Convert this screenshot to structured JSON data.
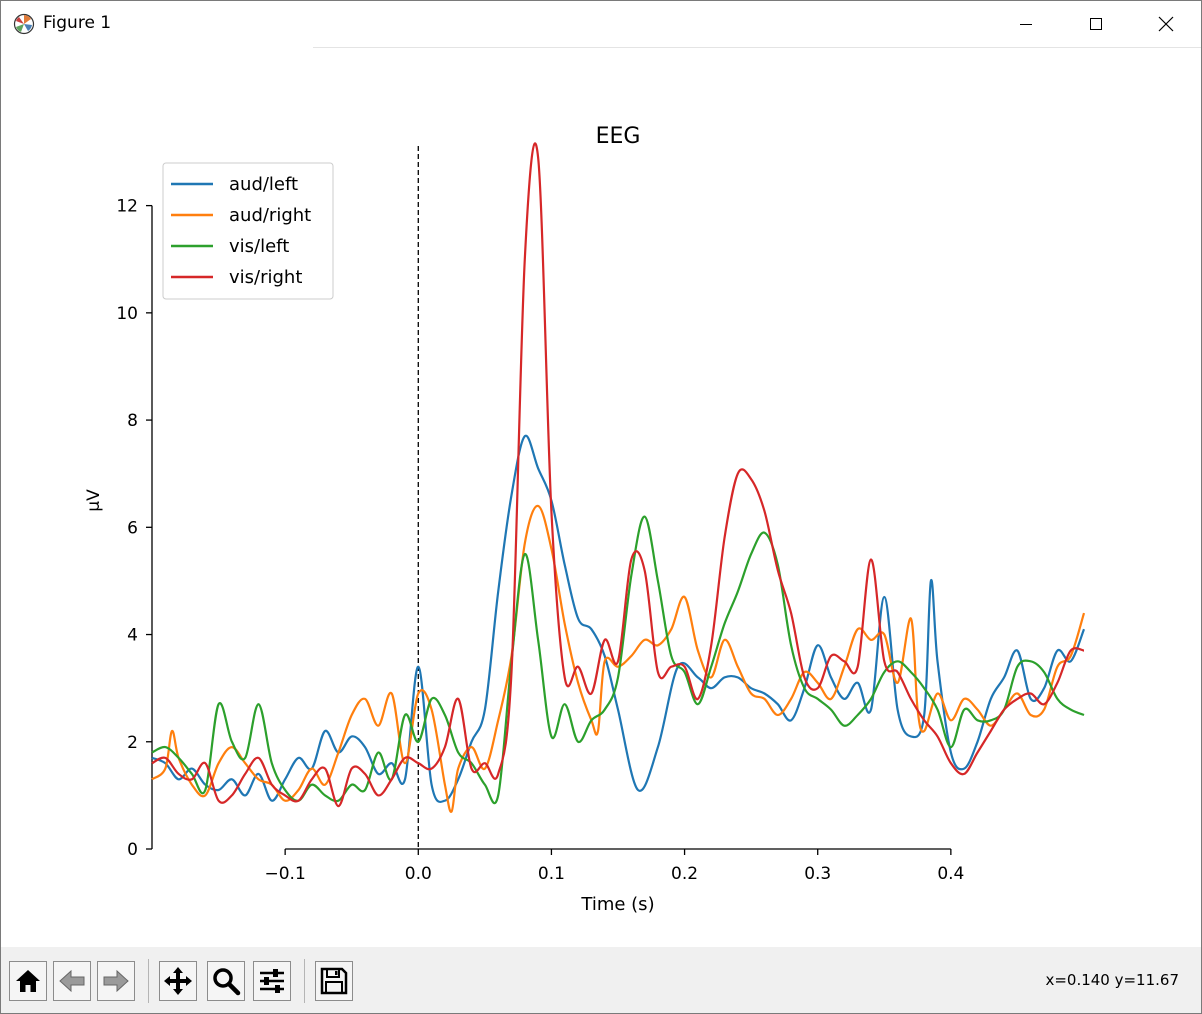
{
  "window": {
    "title": "Figure 1",
    "icon": "matplotlib-icon",
    "controls": [
      "minimize-icon",
      "maximize-icon",
      "close-icon"
    ]
  },
  "toolbar": {
    "buttons": [
      "home-icon",
      "back-arrow-icon",
      "forward-arrow-icon",
      "pan-icon",
      "zoom-icon",
      "configure-subplots-icon",
      "save-icon"
    ],
    "coords": "x=0.140 y=11.67"
  },
  "chart_data": {
    "type": "line",
    "title": "EEG",
    "xlabel": "Time (s)",
    "ylabel": "µV",
    "xlim": [
      -0.2,
      0.5
    ],
    "ylim": [
      0,
      13
    ],
    "xticks": [
      -0.1,
      0.0,
      0.1,
      0.2,
      0.3,
      0.4
    ],
    "xtick_labels": [
      "−0.1",
      "0.0",
      "0.1",
      "0.2",
      "0.3",
      "0.4"
    ],
    "yticks": [
      0,
      2,
      4,
      6,
      8,
      10,
      12
    ],
    "ytick_labels": [
      "0",
      "2",
      "4",
      "6",
      "8",
      "10",
      "12"
    ],
    "vline_x": 0.0,
    "legend_position": "upper-left",
    "series": [
      {
        "name": "aud/left",
        "color": "#1f77b4",
        "points": [
          [
            -0.2,
            1.7
          ],
          [
            -0.19,
            1.6
          ],
          [
            -0.18,
            1.3
          ],
          [
            -0.17,
            1.5
          ],
          [
            -0.16,
            1.2
          ],
          [
            -0.15,
            1.1
          ],
          [
            -0.14,
            1.3
          ],
          [
            -0.13,
            1.0
          ],
          [
            -0.12,
            1.4
          ],
          [
            -0.11,
            0.9
          ],
          [
            -0.1,
            1.3
          ],
          [
            -0.09,
            1.7
          ],
          [
            -0.08,
            1.5
          ],
          [
            -0.07,
            2.2
          ],
          [
            -0.06,
            1.8
          ],
          [
            -0.05,
            2.1
          ],
          [
            -0.04,
            1.9
          ],
          [
            -0.03,
            1.4
          ],
          [
            -0.02,
            1.6
          ],
          [
            -0.01,
            1.3
          ],
          [
            0.0,
            3.4
          ],
          [
            0.01,
            1.2
          ],
          [
            0.02,
            0.9
          ],
          [
            0.03,
            1.3
          ],
          [
            0.04,
            2.0
          ],
          [
            0.05,
            2.6
          ],
          [
            0.06,
            4.8
          ],
          [
            0.07,
            6.6
          ],
          [
            0.08,
            7.7
          ],
          [
            0.09,
            7.1
          ],
          [
            0.1,
            6.5
          ],
          [
            0.11,
            5.3
          ],
          [
            0.12,
            4.3
          ],
          [
            0.13,
            4.1
          ],
          [
            0.14,
            3.6
          ],
          [
            0.15,
            2.6
          ],
          [
            0.165,
            1.1
          ],
          [
            0.18,
            1.9
          ],
          [
            0.195,
            3.4
          ],
          [
            0.21,
            3.2
          ],
          [
            0.22,
            3.0
          ],
          [
            0.23,
            3.2
          ],
          [
            0.24,
            3.2
          ],
          [
            0.25,
            3.0
          ],
          [
            0.26,
            2.9
          ],
          [
            0.27,
            2.7
          ],
          [
            0.28,
            2.4
          ],
          [
            0.29,
            3.0
          ],
          [
            0.3,
            3.8
          ],
          [
            0.31,
            3.2
          ],
          [
            0.32,
            2.8
          ],
          [
            0.33,
            3.1
          ],
          [
            0.34,
            2.6
          ],
          [
            0.35,
            4.7
          ],
          [
            0.36,
            2.6
          ],
          [
            0.37,
            2.1
          ],
          [
            0.38,
            2.5
          ],
          [
            0.385,
            5.0
          ],
          [
            0.39,
            3.5
          ],
          [
            0.4,
            1.8
          ],
          [
            0.41,
            1.5
          ],
          [
            0.42,
            2.0
          ],
          [
            0.43,
            2.8
          ],
          [
            0.44,
            3.2
          ],
          [
            0.45,
            3.7
          ],
          [
            0.46,
            2.8
          ],
          [
            0.47,
            3.0
          ],
          [
            0.48,
            3.7
          ],
          [
            0.49,
            3.5
          ],
          [
            0.5,
            4.1
          ]
        ]
      },
      {
        "name": "aud/right",
        "color": "#ff7f0e",
        "points": [
          [
            -0.2,
            1.3
          ],
          [
            -0.19,
            1.5
          ],
          [
            -0.185,
            2.2
          ],
          [
            -0.18,
            1.7
          ],
          [
            -0.17,
            1.2
          ],
          [
            -0.16,
            1.0
          ],
          [
            -0.15,
            1.6
          ],
          [
            -0.14,
            1.9
          ],
          [
            -0.13,
            1.6
          ],
          [
            -0.12,
            1.3
          ],
          [
            -0.11,
            1.2
          ],
          [
            -0.1,
            0.9
          ],
          [
            -0.09,
            1.1
          ],
          [
            -0.08,
            1.5
          ],
          [
            -0.07,
            1.2
          ],
          [
            -0.06,
            1.8
          ],
          [
            -0.05,
            2.5
          ],
          [
            -0.04,
            2.8
          ],
          [
            -0.03,
            2.3
          ],
          [
            -0.02,
            2.9
          ],
          [
            -0.01,
            1.6
          ],
          [
            0.0,
            2.9
          ],
          [
            0.01,
            2.6
          ],
          [
            0.02,
            1.2
          ],
          [
            0.025,
            0.7
          ],
          [
            0.03,
            1.5
          ],
          [
            0.04,
            1.9
          ],
          [
            0.05,
            1.5
          ],
          [
            0.06,
            2.4
          ],
          [
            0.07,
            3.6
          ],
          [
            0.08,
            5.7
          ],
          [
            0.09,
            6.4
          ],
          [
            0.1,
            5.6
          ],
          [
            0.11,
            4.2
          ],
          [
            0.12,
            3.1
          ],
          [
            0.13,
            2.4
          ],
          [
            0.135,
            2.2
          ],
          [
            0.14,
            3.5
          ],
          [
            0.15,
            3.4
          ],
          [
            0.16,
            3.6
          ],
          [
            0.17,
            3.9
          ],
          [
            0.18,
            3.8
          ],
          [
            0.19,
            4.1
          ],
          [
            0.2,
            4.7
          ],
          [
            0.21,
            3.7
          ],
          [
            0.22,
            3.2
          ],
          [
            0.23,
            3.9
          ],
          [
            0.24,
            3.4
          ],
          [
            0.25,
            2.9
          ],
          [
            0.26,
            2.8
          ],
          [
            0.27,
            2.5
          ],
          [
            0.28,
            2.8
          ],
          [
            0.29,
            3.3
          ],
          [
            0.3,
            3.1
          ],
          [
            0.31,
            2.8
          ],
          [
            0.32,
            3.4
          ],
          [
            0.33,
            4.1
          ],
          [
            0.34,
            3.9
          ],
          [
            0.35,
            4.0
          ],
          [
            0.36,
            3.1
          ],
          [
            0.37,
            4.3
          ],
          [
            0.375,
            2.6
          ],
          [
            0.38,
            2.2
          ],
          [
            0.39,
            2.9
          ],
          [
            0.4,
            2.4
          ],
          [
            0.41,
            2.8
          ],
          [
            0.42,
            2.6
          ],
          [
            0.43,
            2.3
          ],
          [
            0.44,
            2.6
          ],
          [
            0.45,
            2.9
          ],
          [
            0.46,
            2.5
          ],
          [
            0.47,
            2.6
          ],
          [
            0.48,
            3.4
          ],
          [
            0.49,
            3.6
          ],
          [
            0.5,
            4.4
          ]
        ]
      },
      {
        "name": "vis/left",
        "color": "#2ca02c",
        "points": [
          [
            -0.2,
            1.8
          ],
          [
            -0.19,
            1.9
          ],
          [
            -0.18,
            1.7
          ],
          [
            -0.17,
            1.4
          ],
          [
            -0.16,
            1.1
          ],
          [
            -0.15,
            2.7
          ],
          [
            -0.14,
            2.0
          ],
          [
            -0.13,
            1.7
          ],
          [
            -0.12,
            2.7
          ],
          [
            -0.11,
            1.6
          ],
          [
            -0.1,
            1.1
          ],
          [
            -0.09,
            0.9
          ],
          [
            -0.08,
            1.2
          ],
          [
            -0.07,
            1.0
          ],
          [
            -0.06,
            0.9
          ],
          [
            -0.05,
            1.2
          ],
          [
            -0.04,
            1.1
          ],
          [
            -0.03,
            1.8
          ],
          [
            -0.02,
            1.3
          ],
          [
            -0.01,
            2.5
          ],
          [
            0.0,
            2.0
          ],
          [
            0.01,
            2.8
          ],
          [
            0.02,
            2.5
          ],
          [
            0.03,
            1.8
          ],
          [
            0.04,
            1.6
          ],
          [
            0.05,
            1.2
          ],
          [
            0.06,
            1.0
          ],
          [
            0.07,
            3.5
          ],
          [
            0.08,
            5.5
          ],
          [
            0.09,
            3.9
          ],
          [
            0.1,
            2.1
          ],
          [
            0.11,
            2.7
          ],
          [
            0.12,
            2.0
          ],
          [
            0.13,
            2.4
          ],
          [
            0.14,
            2.6
          ],
          [
            0.15,
            3.2
          ],
          [
            0.16,
            5.1
          ],
          [
            0.17,
            6.2
          ],
          [
            0.18,
            5.0
          ],
          [
            0.19,
            3.6
          ],
          [
            0.2,
            3.3
          ],
          [
            0.21,
            2.7
          ],
          [
            0.22,
            3.4
          ],
          [
            0.23,
            4.2
          ],
          [
            0.24,
            4.8
          ],
          [
            0.25,
            5.5
          ],
          [
            0.26,
            5.9
          ],
          [
            0.27,
            5.3
          ],
          [
            0.28,
            3.8
          ],
          [
            0.29,
            3.0
          ],
          [
            0.3,
            2.8
          ],
          [
            0.31,
            2.6
          ],
          [
            0.32,
            2.3
          ],
          [
            0.33,
            2.5
          ],
          [
            0.34,
            2.8
          ],
          [
            0.35,
            3.3
          ],
          [
            0.36,
            3.5
          ],
          [
            0.37,
            3.3
          ],
          [
            0.38,
            3.0
          ],
          [
            0.39,
            2.6
          ],
          [
            0.4,
            1.9
          ],
          [
            0.41,
            2.6
          ],
          [
            0.42,
            2.4
          ],
          [
            0.43,
            2.4
          ],
          [
            0.44,
            2.6
          ],
          [
            0.45,
            3.4
          ],
          [
            0.46,
            3.5
          ],
          [
            0.47,
            3.3
          ],
          [
            0.48,
            2.8
          ],
          [
            0.49,
            2.6
          ],
          [
            0.5,
            2.5
          ]
        ]
      },
      {
        "name": "vis/right",
        "color": "#d62728",
        "points": [
          [
            -0.2,
            1.6
          ],
          [
            -0.19,
            1.7
          ],
          [
            -0.18,
            1.4
          ],
          [
            -0.17,
            1.3
          ],
          [
            -0.16,
            1.6
          ],
          [
            -0.15,
            0.9
          ],
          [
            -0.14,
            1.0
          ],
          [
            -0.13,
            1.4
          ],
          [
            -0.12,
            1.7
          ],
          [
            -0.11,
            1.2
          ],
          [
            -0.1,
            1.0
          ],
          [
            -0.09,
            0.9
          ],
          [
            -0.08,
            1.3
          ],
          [
            -0.07,
            1.5
          ],
          [
            -0.06,
            0.8
          ],
          [
            -0.05,
            1.5
          ],
          [
            -0.04,
            1.4
          ],
          [
            -0.03,
            1.0
          ],
          [
            -0.02,
            1.3
          ],
          [
            -0.01,
            1.7
          ],
          [
            0.0,
            1.6
          ],
          [
            0.01,
            1.5
          ],
          [
            0.02,
            1.9
          ],
          [
            0.03,
            2.8
          ],
          [
            0.04,
            1.5
          ],
          [
            0.05,
            1.6
          ],
          [
            0.06,
            1.4
          ],
          [
            0.07,
            3.3
          ],
          [
            0.08,
            11.0
          ],
          [
            0.09,
            12.9
          ],
          [
            0.1,
            6.3
          ],
          [
            0.11,
            3.2
          ],
          [
            0.12,
            3.4
          ],
          [
            0.13,
            2.9
          ],
          [
            0.14,
            3.9
          ],
          [
            0.15,
            3.5
          ],
          [
            0.16,
            5.4
          ],
          [
            0.17,
            5.2
          ],
          [
            0.18,
            3.3
          ],
          [
            0.19,
            3.4
          ],
          [
            0.2,
            3.4
          ],
          [
            0.21,
            2.8
          ],
          [
            0.22,
            3.8
          ],
          [
            0.23,
            5.8
          ],
          [
            0.24,
            7.0
          ],
          [
            0.25,
            6.9
          ],
          [
            0.26,
            6.3
          ],
          [
            0.27,
            5.2
          ],
          [
            0.28,
            4.4
          ],
          [
            0.29,
            3.2
          ],
          [
            0.3,
            3.0
          ],
          [
            0.31,
            3.6
          ],
          [
            0.32,
            3.5
          ],
          [
            0.33,
            3.4
          ],
          [
            0.34,
            5.4
          ],
          [
            0.35,
            3.5
          ],
          [
            0.36,
            3.3
          ],
          [
            0.37,
            2.8
          ],
          [
            0.38,
            2.4
          ],
          [
            0.39,
            2.1
          ],
          [
            0.4,
            1.6
          ],
          [
            0.41,
            1.4
          ],
          [
            0.42,
            1.8
          ],
          [
            0.43,
            2.2
          ],
          [
            0.44,
            2.6
          ],
          [
            0.45,
            2.8
          ],
          [
            0.46,
            2.9
          ],
          [
            0.47,
            2.7
          ],
          [
            0.48,
            3.1
          ],
          [
            0.49,
            3.7
          ],
          [
            0.5,
            3.7
          ]
        ]
      }
    ]
  }
}
